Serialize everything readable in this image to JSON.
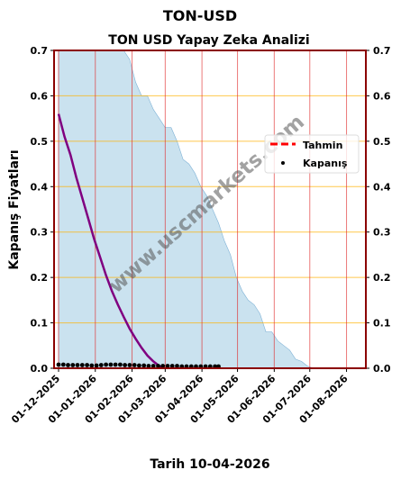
{
  "chart_data": {
    "type": "line",
    "title": "TON-USD",
    "subtitle": "TON USD Yapay Zeka Analizi",
    "xlabel": "Tarih 10-04-2026",
    "ylabel": "Kapanış Fiyatları",
    "ylim": [
      0,
      0.7
    ],
    "yticks": [
      "0.0",
      "0.1",
      "0.2",
      "0.3",
      "0.4",
      "0.5",
      "0.6",
      "0.7"
    ],
    "xticks": [
      "01-12-2025",
      "01-01-2026",
      "01-02-2026",
      "01-03-2026",
      "01-04-2026",
      "01-05-2026",
      "01-06-2026",
      "01-07-2026",
      "01-08-2026"
    ],
    "watermark": "www.uscmarkets.com",
    "legend_position": "center-right",
    "grid": true,
    "series": [
      {
        "name": "Tahmin",
        "style": "dashed",
        "color": "#ff0000",
        "values": []
      },
      {
        "name": "Kapanış",
        "style": "points",
        "color": "#000000",
        "x": [
          0,
          4,
          8,
          12,
          16,
          20,
          24,
          28,
          32,
          36,
          40,
          44,
          48,
          52,
          56,
          60,
          64,
          68,
          72,
          76,
          80,
          84,
          88,
          92,
          96,
          100,
          104,
          108,
          112,
          116,
          120,
          124,
          128,
          132,
          135
        ],
        "values": [
          0.008,
          0.008,
          0.007,
          0.007,
          0.007,
          0.007,
          0.007,
          0.006,
          0.006,
          0.007,
          0.008,
          0.008,
          0.008,
          0.008,
          0.007,
          0.007,
          0.007,
          0.006,
          0.006,
          0.005,
          0.005,
          0.005,
          0.005,
          0.005,
          0.005,
          0.005,
          0.004,
          0.004,
          0.004,
          0.004,
          0.004,
          0.004,
          0.004,
          0.004,
          0.004
        ]
      },
      {
        "name": "",
        "style": "line",
        "color": "#800080",
        "x": [
          0,
          5,
          10,
          15,
          20,
          25,
          30,
          35,
          40,
          45,
          50,
          55,
          60,
          65,
          70,
          75,
          80,
          85,
          88
        ],
        "values": [
          0.56,
          0.51,
          0.47,
          0.42,
          0.375,
          0.33,
          0.285,
          0.245,
          0.205,
          0.17,
          0.14,
          0.113,
          0.087,
          0.065,
          0.045,
          0.028,
          0.015,
          0.005,
          0
        ]
      },
      {
        "name": "",
        "style": "area",
        "color": "#9ecae1",
        "x": [
          0,
          10,
          20,
          30,
          40,
          50,
          55,
          60,
          65,
          70,
          75,
          80,
          85,
          90,
          95,
          100,
          105,
          110,
          115,
          120,
          125,
          130,
          135,
          140,
          145,
          150,
          155,
          160,
          165,
          170,
          175,
          180,
          185,
          190,
          195,
          200,
          205,
          210,
          215
        ],
        "values": [
          0.7,
          0.7,
          0.7,
          0.7,
          0.7,
          0.7,
          0.7,
          0.68,
          0.63,
          0.6,
          0.6,
          0.57,
          0.55,
          0.53,
          0.53,
          0.5,
          0.46,
          0.45,
          0.43,
          0.4,
          0.38,
          0.35,
          0.32,
          0.28,
          0.25,
          0.2,
          0.17,
          0.15,
          0.14,
          0.12,
          0.08,
          0.08,
          0.06,
          0.05,
          0.04,
          0.02,
          0.015,
          0.005,
          0
        ]
      }
    ]
  }
}
